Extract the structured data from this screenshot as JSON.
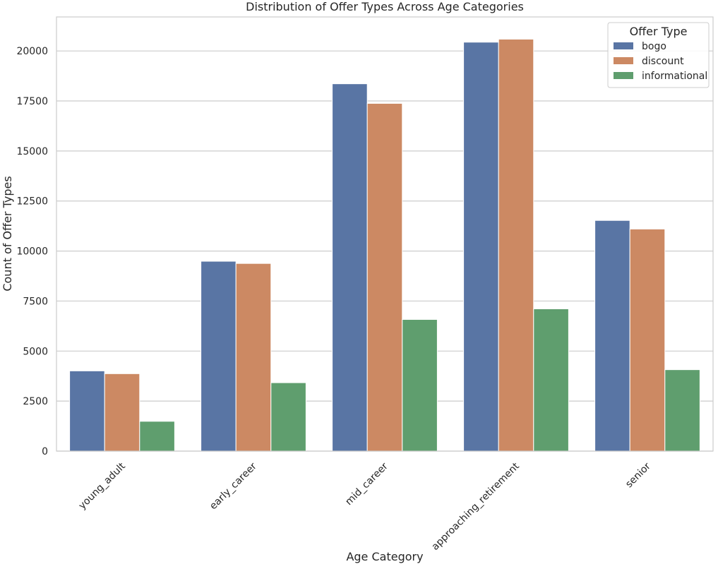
{
  "chart_data": {
    "type": "bar",
    "title": "Distribution of Offer Types Across Age Categories",
    "xlabel": "Age Category",
    "ylabel": "Count of Offer Types",
    "categories": [
      "young_adult",
      "early_career",
      "mid_career",
      "approaching_retirement",
      "senior"
    ],
    "series": [
      {
        "name": "bogo",
        "color": "#5975a4",
        "values": [
          4010,
          9490,
          18360,
          20440,
          11530
        ]
      },
      {
        "name": "discount",
        "color": "#cc8963",
        "values": [
          3870,
          9380,
          17380,
          20590,
          11100
        ]
      },
      {
        "name": "informational",
        "color": "#5f9e6e",
        "values": [
          1490,
          3420,
          6580,
          7110,
          4070
        ]
      }
    ],
    "ylim": [
      0,
      21700
    ],
    "yticks": [
      0,
      2500,
      5000,
      7500,
      10000,
      12500,
      15000,
      17500,
      20000
    ],
    "grid": true,
    "legend": {
      "title": "Offer Type",
      "placement": "top-right"
    }
  }
}
